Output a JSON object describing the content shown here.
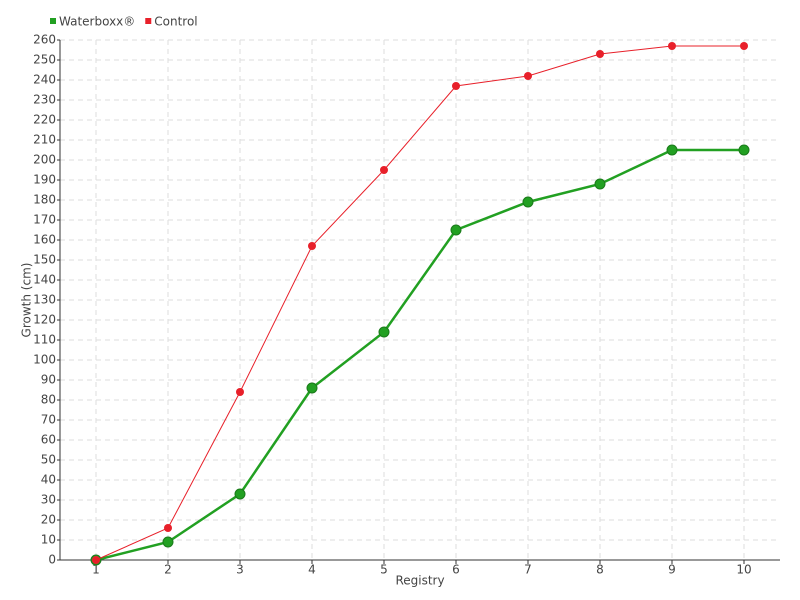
{
  "chart_data": {
    "type": "line",
    "categories": [
      "1",
      "2",
      "3",
      "4",
      "5",
      "6",
      "7",
      "8",
      "9",
      "10"
    ],
    "series": [
      {
        "name": "Waterboxx®",
        "color": "#22a022",
        "values": [
          0,
          9,
          33,
          86,
          114,
          165,
          179,
          188,
          205,
          205
        ]
      },
      {
        "name": "Control",
        "color": "#e8202a",
        "values": [
          0,
          16,
          84,
          157,
          195,
          237,
          242,
          253,
          257,
          257
        ]
      }
    ],
    "x_label": "Registry",
    "y_label": "Growth (cm)",
    "ylim": [
      0,
      260
    ],
    "yticks": [
      0,
      10,
      20,
      30,
      40,
      50,
      60,
      70,
      80,
      90,
      100,
      110,
      120,
      130,
      140,
      150,
      160,
      170,
      180,
      190,
      200,
      210,
      220,
      230,
      240,
      250,
      260
    ],
    "grid": true,
    "legend": "top-left"
  }
}
